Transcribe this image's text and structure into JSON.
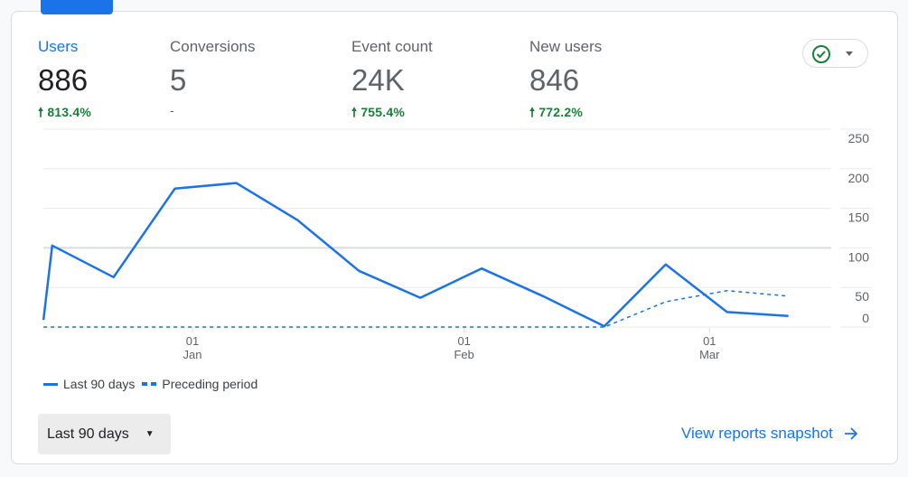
{
  "metrics": [
    {
      "label": "Users",
      "value": "886",
      "change": "813.4%",
      "trend": "up"
    },
    {
      "label": "Conversions",
      "value": "5",
      "change": "-",
      "trend": "none"
    },
    {
      "label": "Event count",
      "value": "24K",
      "change": "755.4%",
      "trend": "up"
    },
    {
      "label": "New users",
      "value": "846",
      "change": "772.2%",
      "trend": "up"
    }
  ],
  "compare_button": {
    "icon": "check-circle-icon",
    "dropdown_icon": "caret-down-icon"
  },
  "colors": {
    "accent": "#1a73e8",
    "positive": "#188038"
  },
  "chart_data": {
    "type": "line",
    "title": "Users",
    "x_unit": "days offset from Jan 01",
    "x_ticks": [
      {
        "day": 0,
        "top": "01",
        "bottom": "Jan"
      },
      {
        "day": 31,
        "top": "01",
        "bottom": "Feb"
      },
      {
        "day": 59,
        "top": "01",
        "bottom": "Mar"
      }
    ],
    "y_ticks": [
      "250",
      "200",
      "150",
      "100",
      "50",
      "0"
    ],
    "ylim": [
      0,
      250
    ],
    "grid": true,
    "legend_position": "bottom-left",
    "series": [
      {
        "name": "Last 90 days",
        "style": "solid",
        "x": [
          -17,
          -16,
          -9,
          -2,
          5,
          12,
          19,
          26,
          33,
          40,
          47,
          54,
          61,
          68
        ],
        "values": [
          9,
          103,
          63,
          175,
          182,
          135,
          71,
          37,
          74,
          39,
          1,
          79,
          19,
          14
        ]
      },
      {
        "name": "Preceding period",
        "style": "dashed",
        "x": [
          -17,
          -16,
          -9,
          -2,
          5,
          12,
          19,
          26,
          33,
          40,
          47,
          54,
          61,
          68
        ],
        "values": [
          0,
          0,
          0,
          0,
          0,
          0,
          0,
          0,
          0,
          0,
          0,
          32,
          46,
          39
        ]
      }
    ]
  },
  "footer": {
    "range_label": "Last 90 days",
    "link_label": "View reports snapshot"
  }
}
